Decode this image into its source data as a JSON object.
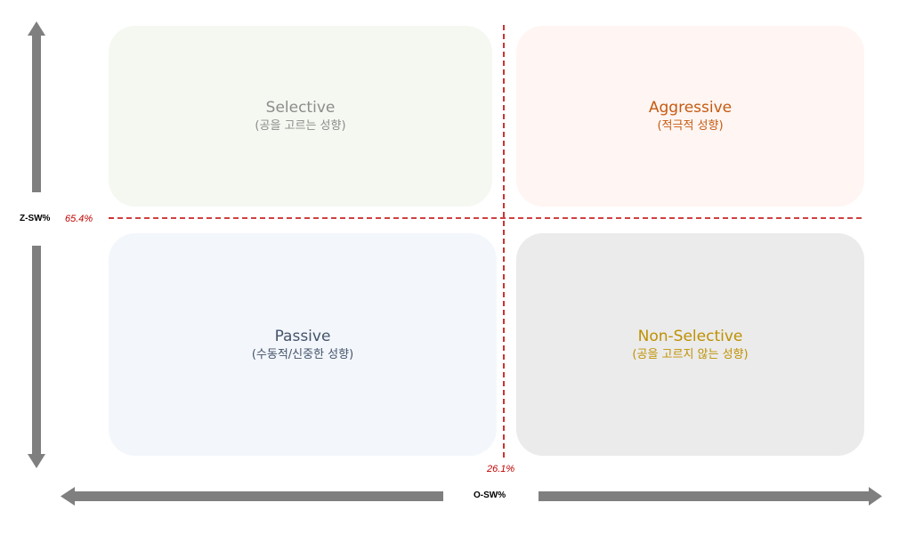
{
  "quadrants": {
    "selective": {
      "title": "Selective",
      "subtitle": "(공을 고르는 성향)"
    },
    "aggressive": {
      "title": "Aggressive",
      "subtitle": "(적극적 성향)"
    },
    "passive": {
      "title": "Passive",
      "subtitle": "(수동적/신중한 성향)"
    },
    "non_selective": {
      "title": "Non-Selective",
      "subtitle": "(공을 고르지 않는 성향)"
    }
  },
  "axes": {
    "y_label": "Z-SW%",
    "x_label": "O-SW%",
    "y_threshold": "65.4%",
    "x_threshold": "26.1%"
  },
  "colors": {
    "arrow": "#7f7f7f",
    "dashed_line": "#c00000"
  }
}
